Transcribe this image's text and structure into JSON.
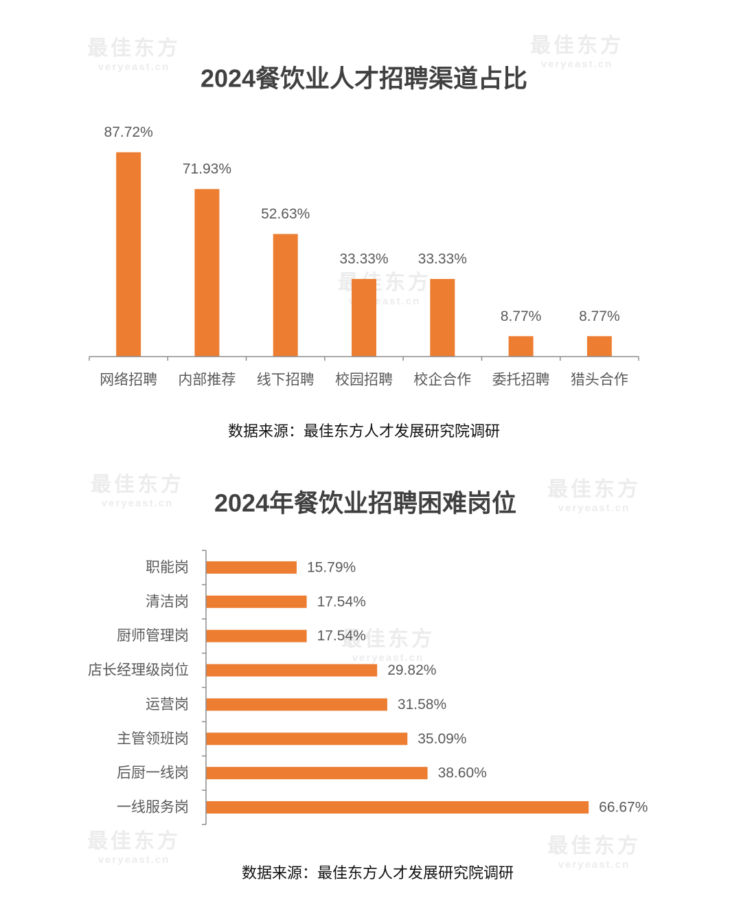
{
  "chart_data": [
    {
      "type": "bar",
      "orientation": "vertical",
      "title": "2024餐饮业人才招聘渠道占比",
      "categories": [
        "网络招聘",
        "内部推荐",
        "线下招聘",
        "校园招聘",
        "校企合作",
        "委托招聘",
        "猎头合作"
      ],
      "values": [
        87.72,
        71.93,
        52.63,
        33.33,
        33.33,
        8.77,
        8.77
      ],
      "value_labels": [
        "87.72%",
        "71.93%",
        "52.63%",
        "33.33%",
        "33.33%",
        "8.77%",
        "8.77%"
      ],
      "color": "#ed7d31",
      "ylim": [
        0,
        100
      ],
      "source": "数据来源：最佳东方人才发展研究院调研"
    },
    {
      "type": "bar",
      "orientation": "horizontal",
      "title": "2024年餐饮业招聘困难岗位",
      "categories": [
        "职能岗",
        "清洁岗",
        "厨师管理岗",
        "店长经理级岗位",
        "运营岗",
        "主管领班岗",
        "后厨一线岗",
        "一线服务岗"
      ],
      "values": [
        15.79,
        17.54,
        17.54,
        29.82,
        31.58,
        35.09,
        38.6,
        66.67
      ],
      "value_labels": [
        "15.79%",
        "17.54%",
        "17.54%",
        "29.82%",
        "31.58%",
        "35.09%",
        "38.60%",
        "66.67%"
      ],
      "color": "#ed7d31",
      "xlim": [
        0,
        70
      ],
      "source": "数据来源：最佳东方人才发展研究院调研"
    }
  ],
  "watermark": {
    "brand": "最佳东方",
    "site": "veryeast.cn"
  }
}
